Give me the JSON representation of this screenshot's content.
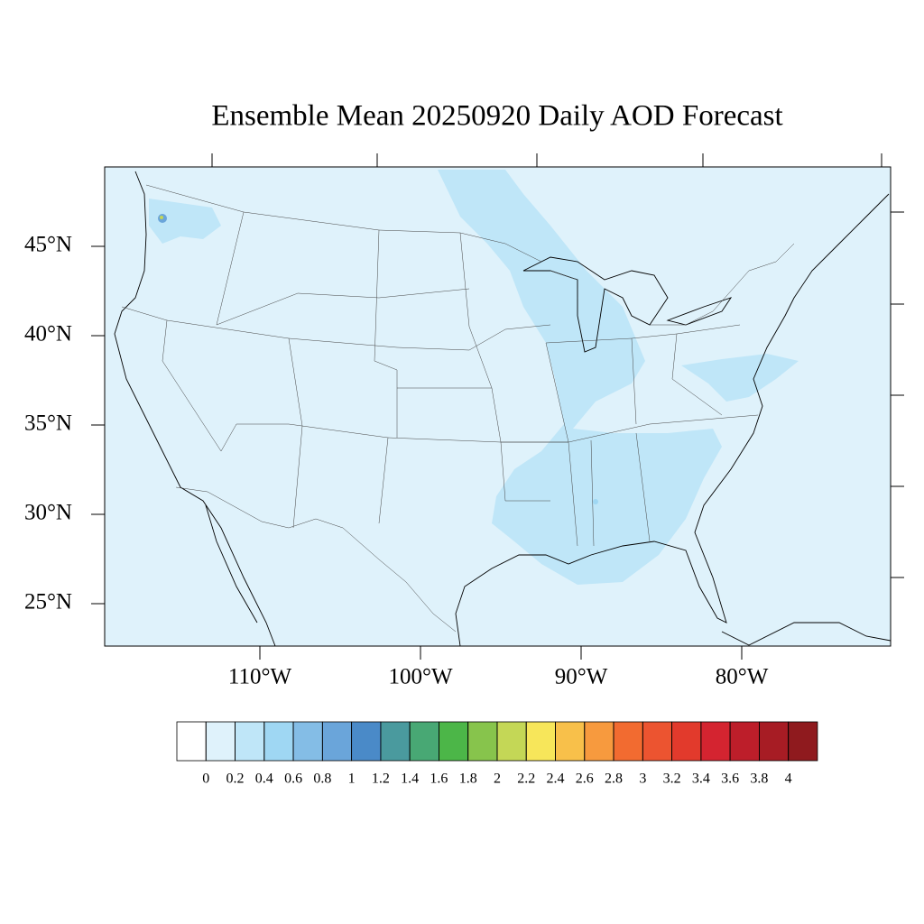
{
  "title": "Ensemble Mean 20250920 Daily AOD Forecast",
  "map": {
    "lon_ticks": [
      {
        "value": -110,
        "label": "110°W"
      },
      {
        "value": -100,
        "label": "100°W"
      },
      {
        "value": -90,
        "label": "90°W"
      },
      {
        "value": -80,
        "label": "80°W"
      }
    ],
    "lat_ticks": [
      {
        "value": 45,
        "label": "45°N"
      },
      {
        "value": 40,
        "label": "40°N"
      },
      {
        "value": 35,
        "label": "35°N"
      },
      {
        "value": 30,
        "label": "30°N"
      },
      {
        "value": 25,
        "label": "25°N"
      }
    ]
  },
  "colorbar": {
    "levels": [
      0,
      0.2,
      0.4,
      0.6,
      0.8,
      1,
      1.2,
      1.4,
      1.6,
      1.8,
      2,
      2.2,
      2.4,
      2.6,
      2.8,
      3,
      3.2,
      3.4,
      3.6,
      3.8,
      4
    ],
    "colors": [
      "#ffffff",
      "#dff2fb",
      "#bfe6f8",
      "#9fd7f3",
      "#84bde6",
      "#6aa5da",
      "#4a8ac8",
      "#4a9a9e",
      "#48a874",
      "#4cb648",
      "#87c44c",
      "#c4d756",
      "#f7e65a",
      "#f8c04a",
      "#f79a3e",
      "#f26b30",
      "#ec5430",
      "#e23a2c",
      "#d42430",
      "#bd1e2a",
      "#a71c24",
      "#8f1a1e"
    ]
  }
}
